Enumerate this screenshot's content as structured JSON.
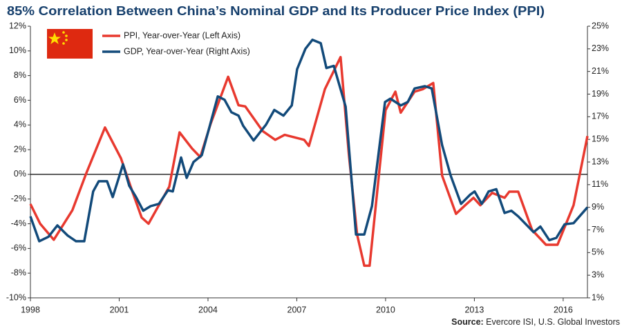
{
  "chart_data": {
    "type": "line",
    "title": "85% Correlation Between China’s Nominal GDP and Its Producer Price Index (PPI)",
    "source_label": "Source:",
    "source": "Evercore ISI, U.S. Global Investors",
    "xlim": [
      1998,
      2016.82
    ],
    "xticks": [
      1998,
      2001,
      2004,
      2007,
      2010,
      2013,
      2016
    ],
    "ylim": [
      -10,
      12
    ],
    "yticks": [
      {
        "value": -10,
        "label": "-10%"
      },
      {
        "value": -8,
        "label": "-8%"
      },
      {
        "value": -6,
        "label": "-6%"
      },
      {
        "value": -4,
        "label": "-4%"
      },
      {
        "value": -2,
        "label": "-2%"
      },
      {
        "value": 0,
        "label": "0%"
      },
      {
        "value": 2,
        "label": "2%"
      },
      {
        "value": 4,
        "label": "4%"
      },
      {
        "value": 6,
        "label": "6%"
      },
      {
        "value": 8,
        "label": "8%"
      },
      {
        "value": 10,
        "label": "10%"
      },
      {
        "value": 12,
        "label": "12%"
      }
    ],
    "y2lim": [
      1,
      25
    ],
    "y2ticks": [
      {
        "value": 1,
        "label": "1%"
      },
      {
        "value": 3,
        "label": "3%"
      },
      {
        "value": 5,
        "label": "5%"
      },
      {
        "value": 7,
        "label": "7%"
      },
      {
        "value": 9,
        "label": "9%"
      },
      {
        "value": 11,
        "label": "11%"
      },
      {
        "value": 13,
        "label": "13%"
      },
      {
        "value": 15,
        "label": "15%"
      },
      {
        "value": 17,
        "label": "17%"
      },
      {
        "value": 19,
        "label": "19%"
      },
      {
        "value": 21,
        "label": "21%"
      },
      {
        "value": 23,
        "label": "23%"
      },
      {
        "value": 25,
        "label": "25%"
      }
    ],
    "grid": false,
    "series": [
      {
        "name": "PPI, Year-over-Year (Left Axis)",
        "color": "#e8392f",
        "axis": "y",
        "x": [
          1998.0,
          1998.33,
          1998.79,
          1999.42,
          1999.89,
          2000.52,
          2001.06,
          2001.46,
          2001.76,
          2001.99,
          2002.69,
          2003.04,
          2003.46,
          2003.74,
          2004.09,
          2004.68,
          2005.03,
          2005.26,
          2005.85,
          2006.27,
          2006.59,
          2007.25,
          2007.41,
          2007.95,
          2008.48,
          2008.76,
          2009.04,
          2009.28,
          2009.46,
          2010.0,
          2010.33,
          2010.51,
          2010.98,
          2011.26,
          2011.61,
          2011.91,
          2012.38,
          2012.69,
          2012.97,
          2013.2,
          2013.6,
          2014.02,
          2014.18,
          2014.48,
          2014.95,
          2015.42,
          2015.81,
          2016.35,
          2016.82
        ],
        "values": [
          -2.4,
          -4.0,
          -5.3,
          -2.9,
          0.1,
          3.8,
          1.3,
          -1.5,
          -3.5,
          -4.0,
          -1.0,
          3.4,
          2.1,
          1.4,
          4.1,
          7.9,
          5.6,
          5.5,
          3.5,
          2.8,
          3.2,
          2.8,
          2.3,
          6.9,
          9.5,
          1.6,
          -4.9,
          -7.4,
          -7.4,
          5.2,
          6.7,
          5.0,
          6.7,
          6.9,
          7.4,
          -0.1,
          -3.2,
          -2.5,
          -1.9,
          -2.5,
          -1.5,
          -1.9,
          -1.4,
          -1.4,
          -4.5,
          -5.7,
          -5.7,
          -2.5,
          3.1
        ]
      },
      {
        "name": "GDP, Year-over-Year (Right Axis)",
        "color": "#124a7a",
        "axis": "y2",
        "x": [
          1998.0,
          1998.3,
          1998.61,
          1998.91,
          1999.26,
          1999.54,
          1999.82,
          2000.12,
          2000.31,
          2000.59,
          2000.78,
          2001.13,
          2001.34,
          2001.57,
          2001.81,
          2002.06,
          2002.34,
          2002.65,
          2002.81,
          2003.09,
          2003.28,
          2003.51,
          2003.79,
          2004.33,
          2004.56,
          2004.79,
          2005.03,
          2005.19,
          2005.54,
          2005.96,
          2006.24,
          2006.55,
          2006.83,
          2007.01,
          2007.29,
          2007.53,
          2007.81,
          2008.0,
          2008.25,
          2008.65,
          2009.0,
          2009.28,
          2009.54,
          2009.98,
          2010.16,
          2010.51,
          2010.75,
          2010.98,
          2011.33,
          2011.56,
          2011.91,
          2012.2,
          2012.55,
          2012.85,
          2013.01,
          2013.25,
          2013.48,
          2013.74,
          2014.02,
          2014.25,
          2014.48,
          2015.0,
          2015.23,
          2015.53,
          2015.77,
          2016.05,
          2016.35,
          2016.82
        ],
        "values": [
          8.2,
          6.0,
          6.4,
          7.4,
          6.5,
          6.0,
          6.0,
          10.4,
          11.3,
          11.3,
          9.9,
          12.8,
          10.9,
          9.9,
          8.7,
          9.1,
          9.3,
          10.5,
          10.4,
          13.4,
          11.6,
          13.0,
          13.6,
          18.8,
          18.5,
          17.4,
          17.1,
          16.2,
          14.9,
          16.3,
          17.6,
          17.1,
          18.0,
          21.2,
          23.0,
          23.8,
          23.5,
          21.3,
          21.5,
          17.9,
          6.6,
          6.6,
          9.1,
          18.3,
          18.6,
          18.0,
          18.3,
          19.5,
          19.7,
          19.5,
          14.5,
          11.8,
          9.3,
          10.1,
          10.4,
          9.3,
          10.4,
          10.6,
          8.5,
          8.7,
          8.2,
          6.8,
          7.3,
          6.1,
          6.3,
          7.5,
          7.6,
          9.0
        ]
      }
    ]
  }
}
